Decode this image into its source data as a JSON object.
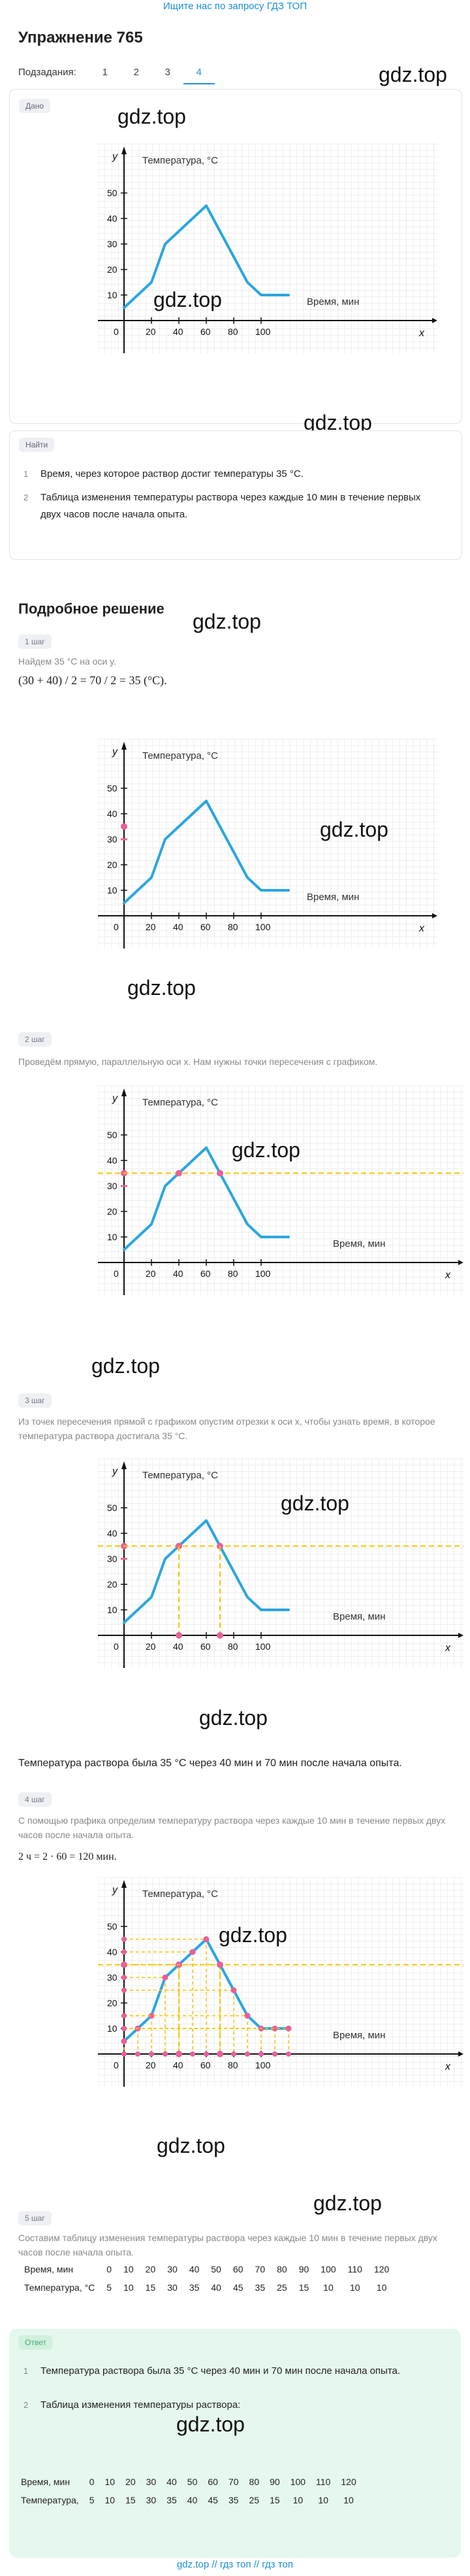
{
  "topbar": "Ищите нас по запросу ГДЗ ТОП",
  "title": "Упражнение 765",
  "subtasks": {
    "label": "Подзадания:",
    "items": [
      "1",
      "2",
      "3",
      "4"
    ],
    "active": "4"
  },
  "watermark": "gdz.top",
  "given_tag": "Дано",
  "find_tag": "Найти",
  "graph": {
    "ylabel": "y",
    "xlabel": "x",
    "y_title": "Температура, °C",
    "x_title": "Время, мин",
    "yticks": [
      "10",
      "20",
      "30",
      "40",
      "50"
    ],
    "xticks": [
      "0",
      "20",
      "40",
      "60",
      "80",
      "100"
    ]
  },
  "chart_data": {
    "type": "line",
    "x": [
      0,
      10,
      20,
      30,
      40,
      50,
      60,
      70,
      80,
      90,
      100,
      110,
      120
    ],
    "values": [
      5,
      10,
      15,
      30,
      35,
      40,
      45,
      35,
      25,
      15,
      10,
      10,
      10
    ],
    "xlabel": "Время, мин",
    "ylabel": "Температура, °C",
    "color": "#2aa6e0"
  },
  "find": [
    {
      "n": "1",
      "text": "Время, через которое раствор достиг температуры 35 °C."
    },
    {
      "n": "2",
      "text": "Таблица изменения температуры раствора через каждые 10 мин в течение первых двух часов после начала опыта."
    }
  ],
  "solution_title": "Подробное решение",
  "steps": [
    {
      "tag": "1 шаг",
      "text": "Найдем 35 °C на оси y.",
      "formula": "(30 + 40) / 2 = 70 / 2 = 35 (°C)."
    },
    {
      "tag": "2 шаг",
      "text": "Проведём прямую, параллельную оси x. Нам нужны точки пересечения с графиком."
    },
    {
      "tag": "3 шаг",
      "text": "Из точек пересечения прямой с графиком опустим отрезки к оси x, чтобы узнать время, в которое температура раствора достигала 35 °C.",
      "result": "Температура раствора была 35 °C через 40 мин и 70 мин после начала опыта."
    },
    {
      "tag": "4 шаг",
      "text": "С помощью графика определим температуру раствора через каждые 10 мин в течение первых двух часов после начала опыта.",
      "formula": "2 ч = 2 · 60 = 120 мин."
    },
    {
      "tag": "5 шаг",
      "text": "Составим таблицу изменения температуры раствора через каждые 10 мин в течение первых двух часов после начала опыта."
    }
  ],
  "table": {
    "row1_label": "Время, мин",
    "row2_label": "Температура, °C",
    "times": [
      "0",
      "10",
      "20",
      "30",
      "40",
      "50",
      "60",
      "70",
      "80",
      "90",
      "100",
      "110",
      "120"
    ],
    "temps": [
      "5",
      "10",
      "15",
      "30",
      "35",
      "40",
      "45",
      "35",
      "25",
      "15",
      "10",
      "10",
      "10"
    ]
  },
  "answer": {
    "tag": "Ответ",
    "items": [
      {
        "n": "1",
        "text": "Температура раствора была 35 °C через 40 мин и 70 мин после начала опыта."
      },
      {
        "n": "2",
        "text": "Таблица изменения температуры раствора:"
      }
    ],
    "row1_label": "Время, мин",
    "row2_label": "Температура,"
  },
  "footer": "gdz.top // гдз топ // гдз топ"
}
